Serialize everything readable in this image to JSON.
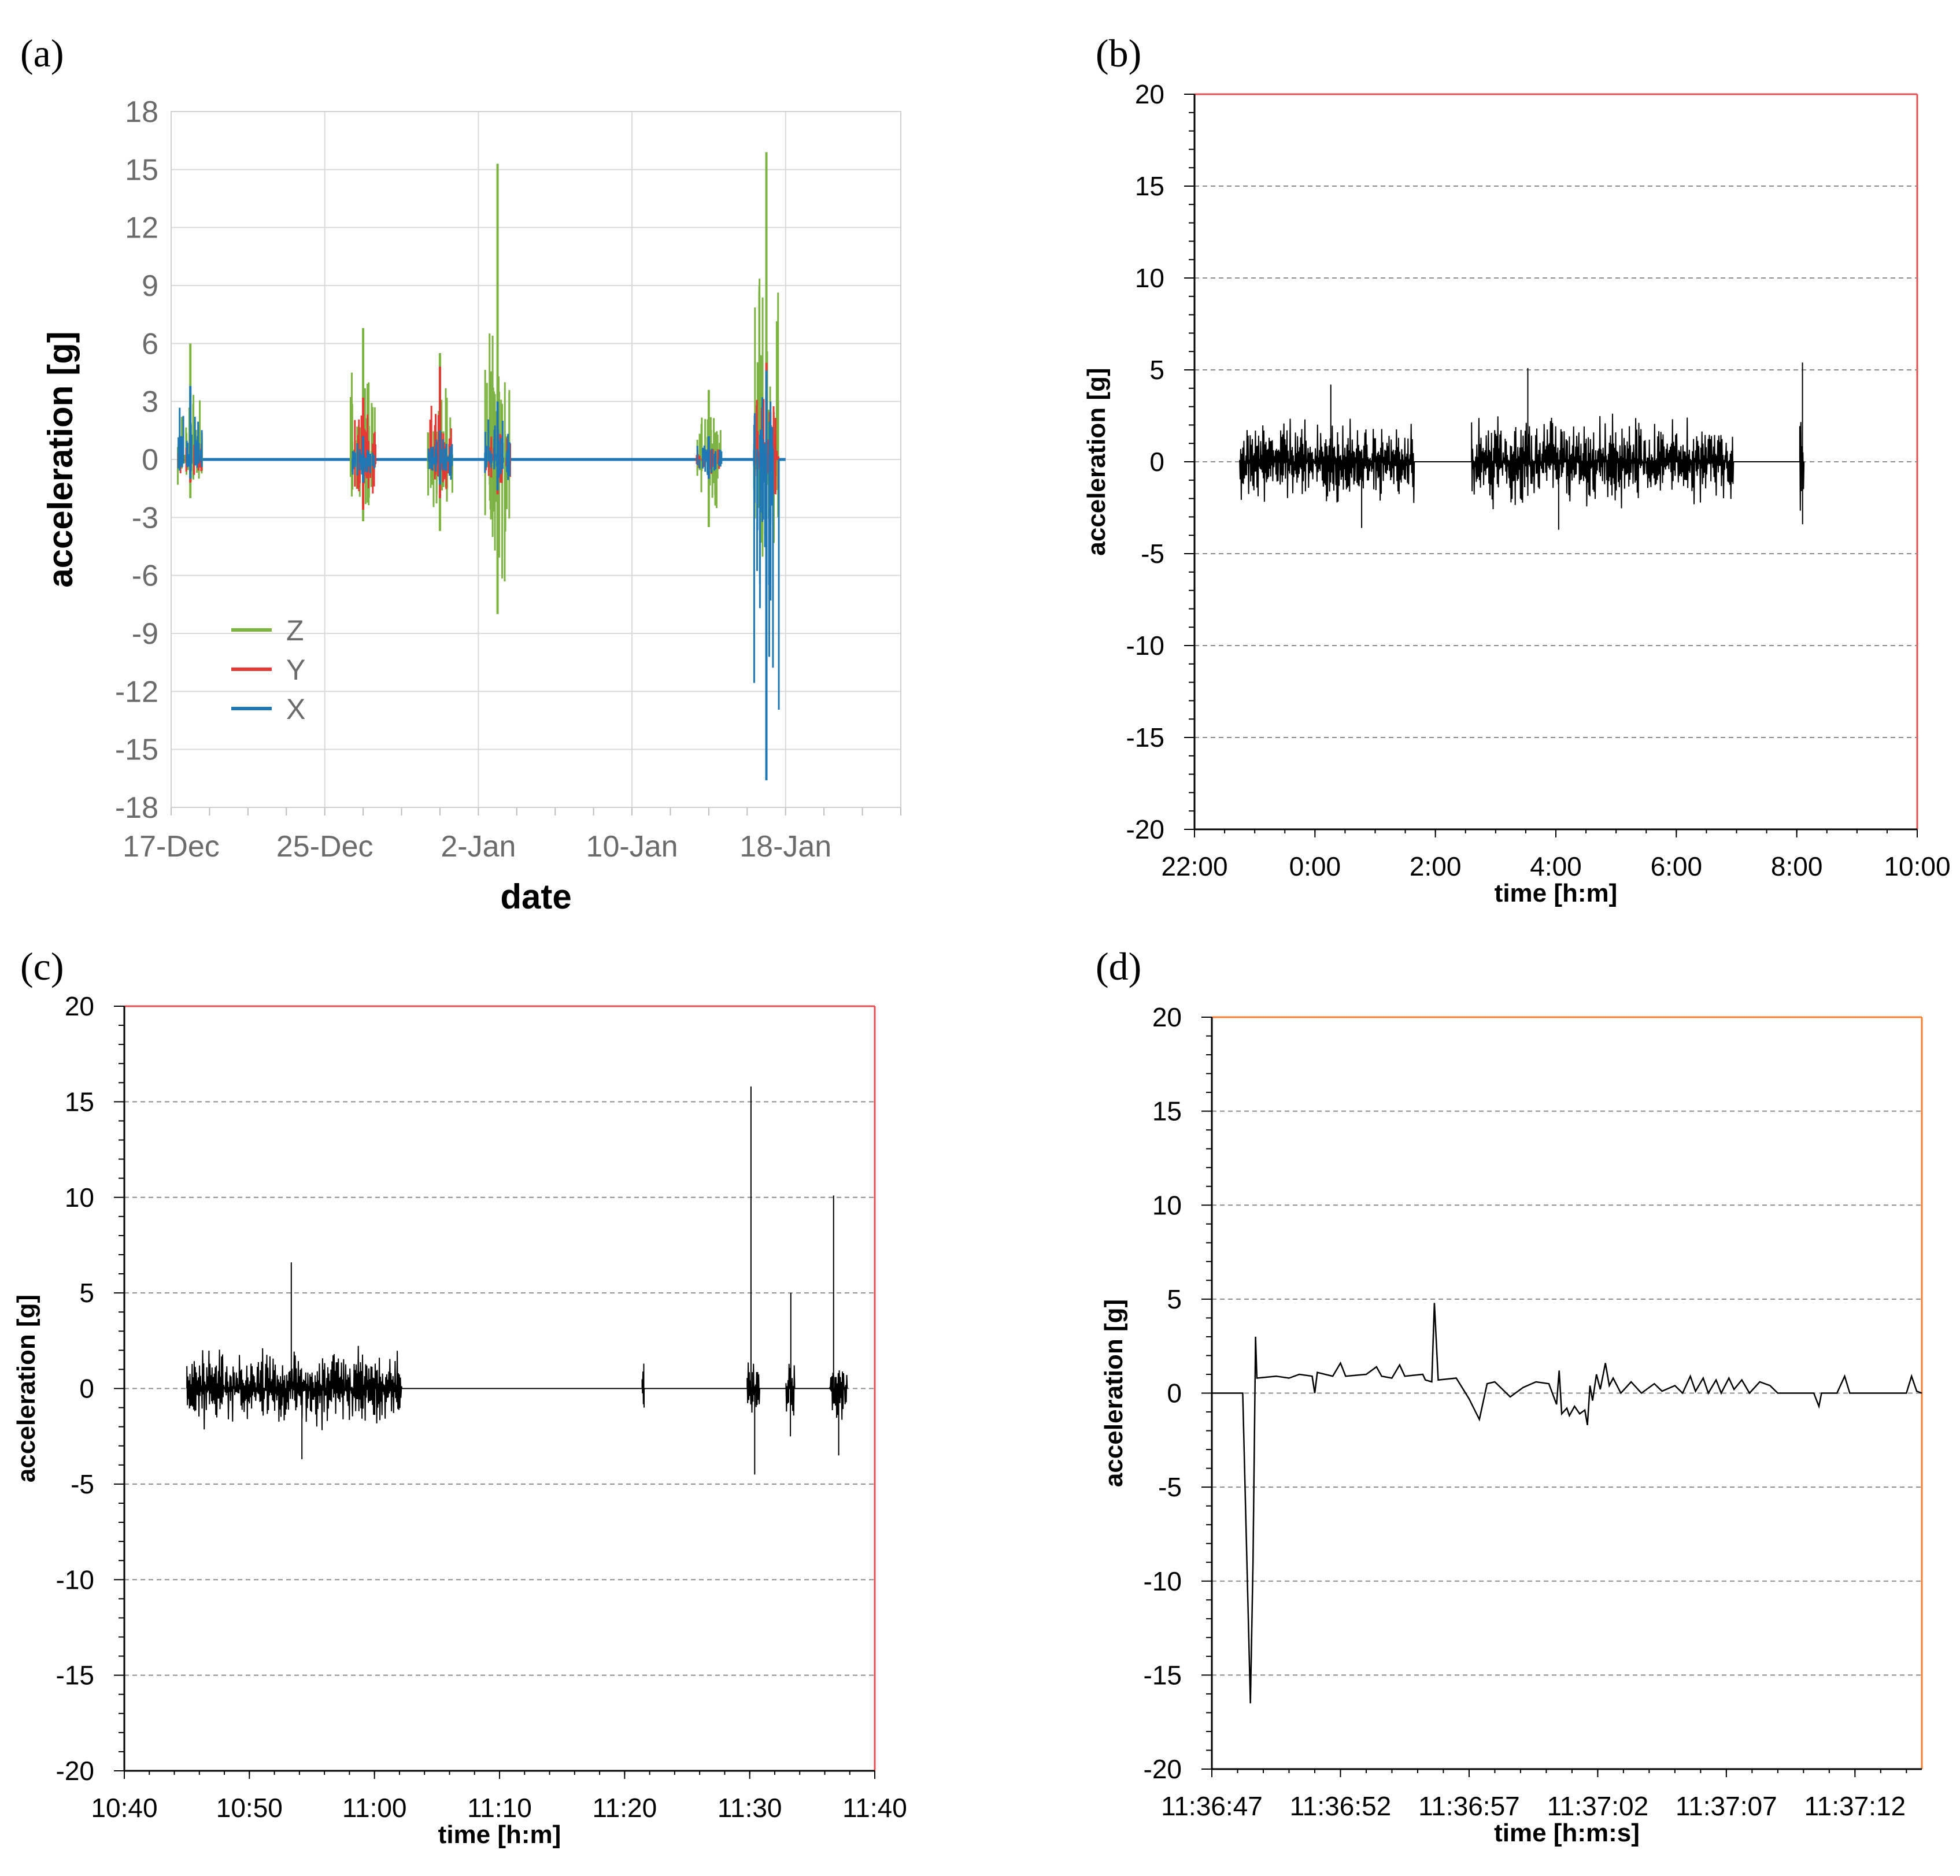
{
  "panels": {
    "a": {
      "label": "(a)"
    },
    "b": {
      "label": "(b)"
    },
    "c": {
      "label": "(c)"
    },
    "d": {
      "label": "(d)"
    }
  },
  "chart_data": [
    {
      "id": "a",
      "type": "line",
      "xlabel": "date",
      "ylabel": "acceleration [g]",
      "x_type": "date",
      "xlim": [
        "2015-12-17",
        "2016-01-24"
      ],
      "x_ticks": [
        "17-Dec",
        "25-Dec",
        "2-Jan",
        "10-Jan",
        "18-Jan"
      ],
      "ylim": [
        -18,
        18
      ],
      "y_ticks": [
        "18",
        "15",
        "12",
        "9",
        "6",
        "3",
        "0",
        "-3",
        "-6",
        "-9",
        "-12",
        "-15",
        "-18"
      ],
      "grid": true,
      "legend_position": "lower-left",
      "series_colors": {
        "Z": "#7cb342",
        "Y": "#e53935",
        "X": "#1f77b4"
      },
      "series": [
        {
          "name": "Z",
          "bursts": [
            {
              "date": "2015-12-18",
              "max": 6.0,
              "min": -2.0
            },
            {
              "date": "2015-12-27",
              "max": 6.8,
              "min": -3.2
            },
            {
              "date": "2015-12-31",
              "max": 5.5,
              "min": -3.7
            },
            {
              "date": "2016-01-03",
              "max": 15.3,
              "min": -8.0
            },
            {
              "date": "2016-01-14",
              "max": 3.6,
              "min": -3.5
            },
            {
              "date": "2016-01-17",
              "max": 15.9,
              "min": -7.7
            }
          ]
        },
        {
          "name": "Y",
          "bursts": [
            {
              "date": "2015-12-18",
              "max": 1.2,
              "min": -1.2
            },
            {
              "date": "2015-12-27",
              "max": 3.2,
              "min": -2.6
            },
            {
              "date": "2015-12-31",
              "max": 4.8,
              "min": -2.0
            },
            {
              "date": "2016-01-03",
              "max": 2.0,
              "min": -1.8
            },
            {
              "date": "2016-01-14",
              "max": 1.0,
              "min": -1.0
            },
            {
              "date": "2016-01-17",
              "max": 5.0,
              "min": -2.5
            }
          ]
        },
        {
          "name": "X",
          "bursts": [
            {
              "date": "2015-12-18",
              "max": 3.8,
              "min": -1.0
            },
            {
              "date": "2015-12-27",
              "max": 1.2,
              "min": -1.2
            },
            {
              "date": "2015-12-31",
              "max": 1.5,
              "min": -1.3
            },
            {
              "date": "2016-01-03",
              "max": 3.0,
              "min": -1.6
            },
            {
              "date": "2016-01-14",
              "max": 1.2,
              "min": -1.0
            },
            {
              "date": "2016-01-17",
              "max": 4.6,
              "min": -16.6
            }
          ]
        }
      ]
    },
    {
      "id": "b",
      "type": "line",
      "xlabel": "time [h:m]",
      "ylabel": "acceleration [g]",
      "x_unit": "hours",
      "xlim": [
        22,
        34
      ],
      "x_ticks": [
        "22:00",
        "0:00",
        "2:00",
        "4:00",
        "6:00",
        "8:00",
        "10:00"
      ],
      "ylim": [
        -20,
        20
      ],
      "y_ticks": [
        "20",
        "15",
        "10",
        "5",
        "0",
        "-5",
        "-10",
        "-15",
        "-20"
      ],
      "grid": "dashed-horizontal",
      "frame_color": "#e05050",
      "series": [
        {
          "color": "#000000",
          "segments": [
            {
              "start": 22.75,
              "end": 25.65,
              "amp": 1.2,
              "max": 4.2,
              "min": -3.6
            },
            {
              "start": 26.6,
              "end": 30.95,
              "amp": 1.3,
              "max": 5.1,
              "min": -3.7
            },
            {
              "start": 32.05,
              "end": 32.12,
              "amp": 1.5,
              "max": 5.4,
              "min": -3.4
            }
          ]
        }
      ]
    },
    {
      "id": "c",
      "type": "line",
      "xlabel": "time [h:m]",
      "ylabel": "acceleration [g]",
      "x_unit": "minutes",
      "xlim": [
        640,
        700
      ],
      "x_ticks": [
        "10:40",
        "10:50",
        "11:00",
        "11:10",
        "11:20",
        "11:30",
        "11:40"
      ],
      "ylim": [
        -20,
        20
      ],
      "y_ticks": [
        "20",
        "15",
        "10",
        "5",
        "0",
        "-5",
        "-10",
        "-15",
        "-20"
      ],
      "grid": "dashed-horizontal",
      "frame_color": "#e05050",
      "series": [
        {
          "color": "#000000",
          "segments": [
            {
              "start": 645.0,
              "end": 662.2,
              "amp": 1.1,
              "max": 6.6,
              "min": -3.7
            },
            {
              "start": 681.4,
              "end": 681.6,
              "amp": 0.6,
              "max": 1.3,
              "min": -1.0
            },
            {
              "start": 689.8,
              "end": 690.8,
              "amp": 1.0,
              "max": 15.8,
              "min": -4.5
            },
            {
              "start": 692.9,
              "end": 693.6,
              "amp": 1.0,
              "max": 5.0,
              "min": -2.5
            },
            {
              "start": 696.4,
              "end": 697.8,
              "amp": 1.0,
              "max": 10.1,
              "min": -3.5
            }
          ]
        }
      ]
    },
    {
      "id": "d",
      "type": "line",
      "xlabel": "time [h:m:s]",
      "ylabel": "acceleration [g]",
      "x_unit": "seconds after 11:36:47",
      "xlim": [
        0,
        27.6
      ],
      "x_ticks": [
        "11:36:47",
        "11:36:52",
        "11:36:57",
        "11:37:02",
        "11:37:07",
        "11:37:12"
      ],
      "ylim": [
        -20,
        20
      ],
      "y_ticks": [
        "20",
        "15",
        "10",
        "5",
        "0",
        "-5",
        "-10",
        "-15",
        "-20"
      ],
      "grid": "dashed-horizontal",
      "frame_color": "#f08030",
      "series": [
        {
          "color": "#000000",
          "points": [
            [
              0,
              0
            ],
            [
              1.2,
              0
            ],
            [
              1.5,
              -16.5
            ],
            [
              1.6,
              -9
            ],
            [
              1.7,
              3.0
            ],
            [
              1.75,
              0.8
            ],
            [
              2.5,
              0.9
            ],
            [
              3.0,
              0.8
            ],
            [
              3.4,
              1.0
            ],
            [
              3.9,
              0.9
            ],
            [
              4.0,
              0
            ],
            [
              4.1,
              1.1
            ],
            [
              4.7,
              0.9
            ],
            [
              5.0,
              1.6
            ],
            [
              5.2,
              0.9
            ],
            [
              6.0,
              1.0
            ],
            [
              6.4,
              1.4
            ],
            [
              6.6,
              0.9
            ],
            [
              7.0,
              0.8
            ],
            [
              7.3,
              1.5
            ],
            [
              7.5,
              0.9
            ],
            [
              8.2,
              1.0
            ],
            [
              8.3,
              0.7
            ],
            [
              8.55,
              0.6
            ],
            [
              8.65,
              4.8
            ],
            [
              8.8,
              0.7
            ],
            [
              9.5,
              0.8
            ],
            [
              10.0,
              -0.3
            ],
            [
              10.4,
              -1.4
            ],
            [
              10.7,
              0.5
            ],
            [
              11.0,
              0.6
            ],
            [
              11.6,
              -0.2
            ],
            [
              12.1,
              0.3
            ],
            [
              12.6,
              0.6
            ],
            [
              13.1,
              0.5
            ],
            [
              13.4,
              -0.6
            ],
            [
              13.5,
              1.2
            ],
            [
              13.6,
              -1.1
            ],
            [
              13.8,
              -0.8
            ],
            [
              13.9,
              -1.2
            ],
            [
              14.1,
              -0.7
            ],
            [
              14.3,
              -1.1
            ],
            [
              14.5,
              -0.9
            ],
            [
              14.6,
              -1.7
            ],
            [
              14.7,
              0.4
            ],
            [
              14.8,
              -0.4
            ],
            [
              14.95,
              1.0
            ],
            [
              15.1,
              0.2
            ],
            [
              15.3,
              1.6
            ],
            [
              15.45,
              0.4
            ],
            [
              15.6,
              0.8
            ],
            [
              15.9,
              0.0
            ],
            [
              16.3,
              0.6
            ],
            [
              16.7,
              0.0
            ],
            [
              17.2,
              0.5
            ],
            [
              17.5,
              0.1
            ],
            [
              18.0,
              0.4
            ],
            [
              18.3,
              0.0
            ],
            [
              18.6,
              0.9
            ],
            [
              18.8,
              0.1
            ],
            [
              19.1,
              0.8
            ],
            [
              19.3,
              0.0
            ],
            [
              19.6,
              0.7
            ],
            [
              19.8,
              0.0
            ],
            [
              20.1,
              0.8
            ],
            [
              20.3,
              0.2
            ],
            [
              20.6,
              0.7
            ],
            [
              20.9,
              0.0
            ],
            [
              21.3,
              0.6
            ],
            [
              21.7,
              0.4
            ],
            [
              22.0,
              0.0
            ],
            [
              23.4,
              0.0
            ],
            [
              23.6,
              -0.7
            ],
            [
              23.7,
              0.0
            ],
            [
              24.3,
              0.0
            ],
            [
              24.6,
              0.9
            ],
            [
              24.8,
              0.0
            ],
            [
              27.0,
              0.0
            ],
            [
              27.2,
              0.9
            ],
            [
              27.4,
              0.1
            ],
            [
              27.6,
              0.0
            ]
          ]
        }
      ]
    }
  ]
}
